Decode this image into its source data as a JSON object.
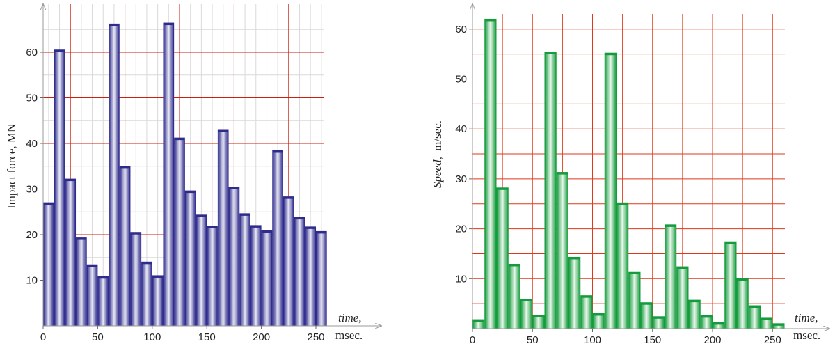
{
  "chart_data": [
    {
      "type": "bar",
      "xlabel_italic": "time,",
      "xlabel_unit": "msec.",
      "ylabel": "Impact force, MN",
      "xticks": [
        0,
        50,
        100,
        150,
        200,
        250
      ],
      "yticks": [
        10,
        20,
        30,
        40,
        50,
        60
      ],
      "xlim": [
        0,
        262
      ],
      "ylim": [
        0,
        67
      ],
      "grid": true,
      "bar_color": "#2e2b8c",
      "bar_highlight": "#e4e4f2",
      "grid_major_color": "#cc1f10",
      "grid_minor_color": "#d9d9d9",
      "x": [
        0,
        10,
        20,
        30,
        40,
        50,
        60,
        70,
        80,
        90,
        100,
        110,
        120,
        130,
        140,
        150,
        160,
        170,
        180,
        190,
        200,
        210,
        220,
        230,
        240,
        250
      ],
      "values": [
        27,
        60.5,
        32.2,
        19.3,
        13.4,
        10.8,
        66.2,
        34.9,
        20.5,
        14,
        11,
        66.4,
        41.2,
        29.6,
        24.3,
        21.9,
        42.9,
        30.4,
        24.6,
        22,
        20.9,
        38.4,
        28.3,
        23.8,
        21.7,
        20.7
      ]
    },
    {
      "type": "bar",
      "xlabel_italic": "time,",
      "xlabel_unit": "msec.",
      "ylabel_italic": "Speed,",
      "ylabel_unit": "m/sec.",
      "xticks": [
        0,
        50,
        100,
        150,
        200,
        250
      ],
      "yticks": [
        10,
        20,
        30,
        40,
        50,
        60
      ],
      "xlim": [
        0,
        258
      ],
      "ylim": [
        0,
        63.5
      ],
      "grid": true,
      "bar_color": "#139b3c",
      "bar_highlight": "#e6f5e9",
      "grid_major_color": "#e0381a",
      "grid_minor_color": "#d9d9d9",
      "x": [
        0,
        10,
        20,
        30,
        40,
        50,
        60,
        70,
        80,
        90,
        100,
        110,
        120,
        130,
        140,
        150,
        160,
        170,
        180,
        190,
        200,
        210,
        220,
        230,
        240,
        250
      ],
      "values": [
        1.8,
        62,
        28.2,
        12.9,
        5.9,
        2.7,
        55.4,
        31.3,
        14.3,
        6.6,
        3,
        55.2,
        25.2,
        11.4,
        5.2,
        2.4,
        20.8,
        12.4,
        5.7,
        2.6,
        1.2,
        17.4,
        10,
        4.6,
        2.1,
        1
      ]
    }
  ]
}
